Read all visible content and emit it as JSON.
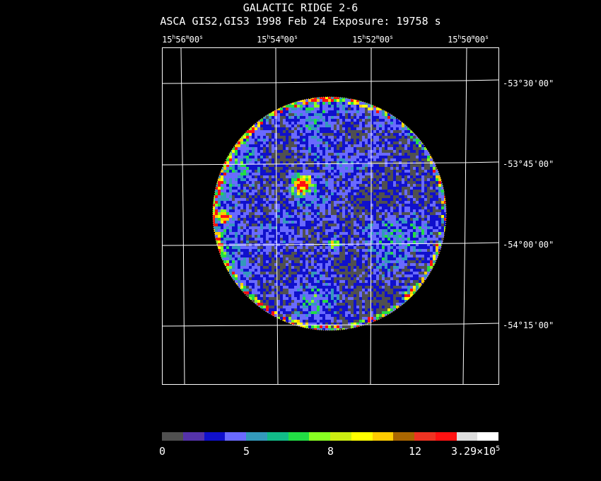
{
  "title": "GALACTIC RIDGE 2-6",
  "subtitle": "ASCA GIS2,GIS3   1998 Feb 24   Exposure: 19758 s",
  "ra_ticks": [
    {
      "h": "15",
      "m": "56",
      "s": "00"
    },
    {
      "h": "15",
      "m": "54",
      "s": "00"
    },
    {
      "h": "15",
      "m": "52",
      "s": "00"
    },
    {
      "h": "15",
      "m": "50",
      "s": "00"
    }
  ],
  "dec_ticks": [
    "-53°30'00\"",
    "-53°45'00\"",
    "-54°00'00\"",
    "-54°15'00\""
  ],
  "colorbar": {
    "colors": [
      "#505050",
      "#5533aa",
      "#1010cc",
      "#6a6aff",
      "#3399bb",
      "#11bb88",
      "#22dd44",
      "#88ff22",
      "#ccee11",
      "#ffff00",
      "#ffcc00",
      "#aa6600",
      "#ee3322",
      "#ff1111",
      "#dddddd",
      "#ffffff"
    ],
    "labels": [
      "0",
      "5",
      "8",
      "12",
      "3.29×10"
    ],
    "exponent": "5"
  }
}
